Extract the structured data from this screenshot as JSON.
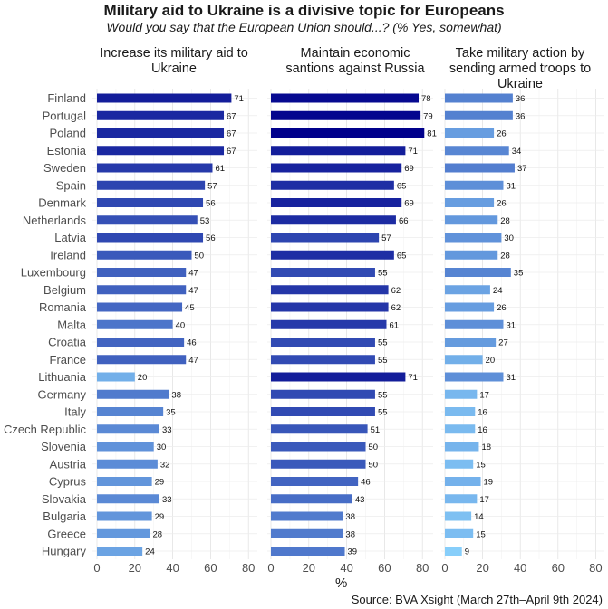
{
  "chart_data": {
    "type": "bar",
    "orientation": "horizontal",
    "title": "Military aid to Ukraine is a divisive topic for Europeans",
    "subtitle": "Would you say that the European Union should...? (% Yes, somewhat)",
    "xlabel": "%",
    "source": "Source: BVA Xsight (March 27th–April 9th 2024)",
    "xlim": [
      0,
      85
    ],
    "xticks": [
      0,
      20,
      40,
      60,
      80
    ],
    "grid": true,
    "categories": [
      "Finland",
      "Portugal",
      "Poland",
      "Estonia",
      "Sweden",
      "Spain",
      "Denmark",
      "Netherlands",
      "Latvia",
      "Ireland",
      "Luxembourg",
      "Belgium",
      "Romania",
      "Malta",
      "Croatia",
      "France",
      "Lithuania",
      "Germany",
      "Italy",
      "Czech Republic",
      "Slovenia",
      "Austria",
      "Cyprus",
      "Slovakia",
      "Bulgaria",
      "Greece",
      "Hungary"
    ],
    "series": [
      {
        "name": "Increase its military aid to Ukraine",
        "values": [
          71,
          67,
          67,
          67,
          61,
          57,
          56,
          53,
          56,
          50,
          47,
          47,
          45,
          40,
          46,
          47,
          20,
          38,
          35,
          33,
          30,
          32,
          29,
          33,
          29,
          28,
          24
        ]
      },
      {
        "name": "Maintain economic santions against Russia",
        "values": [
          78,
          79,
          81,
          71,
          69,
          65,
          69,
          66,
          57,
          65,
          55,
          62,
          62,
          61,
          55,
          55,
          71,
          55,
          55,
          51,
          50,
          50,
          46,
          43,
          38,
          38,
          39
        ]
      },
      {
        "name": "Take military action by sending armed troops to Ukraine",
        "values": [
          36,
          36,
          26,
          34,
          37,
          31,
          26,
          28,
          30,
          28,
          35,
          24,
          26,
          31,
          27,
          20,
          31,
          17,
          16,
          16,
          18,
          15,
          19,
          17,
          14,
          15,
          9
        ]
      }
    ],
    "color_scale": {
      "low": "#87CEFA",
      "high": "#00008B",
      "domain": [
        9,
        81
      ]
    }
  }
}
